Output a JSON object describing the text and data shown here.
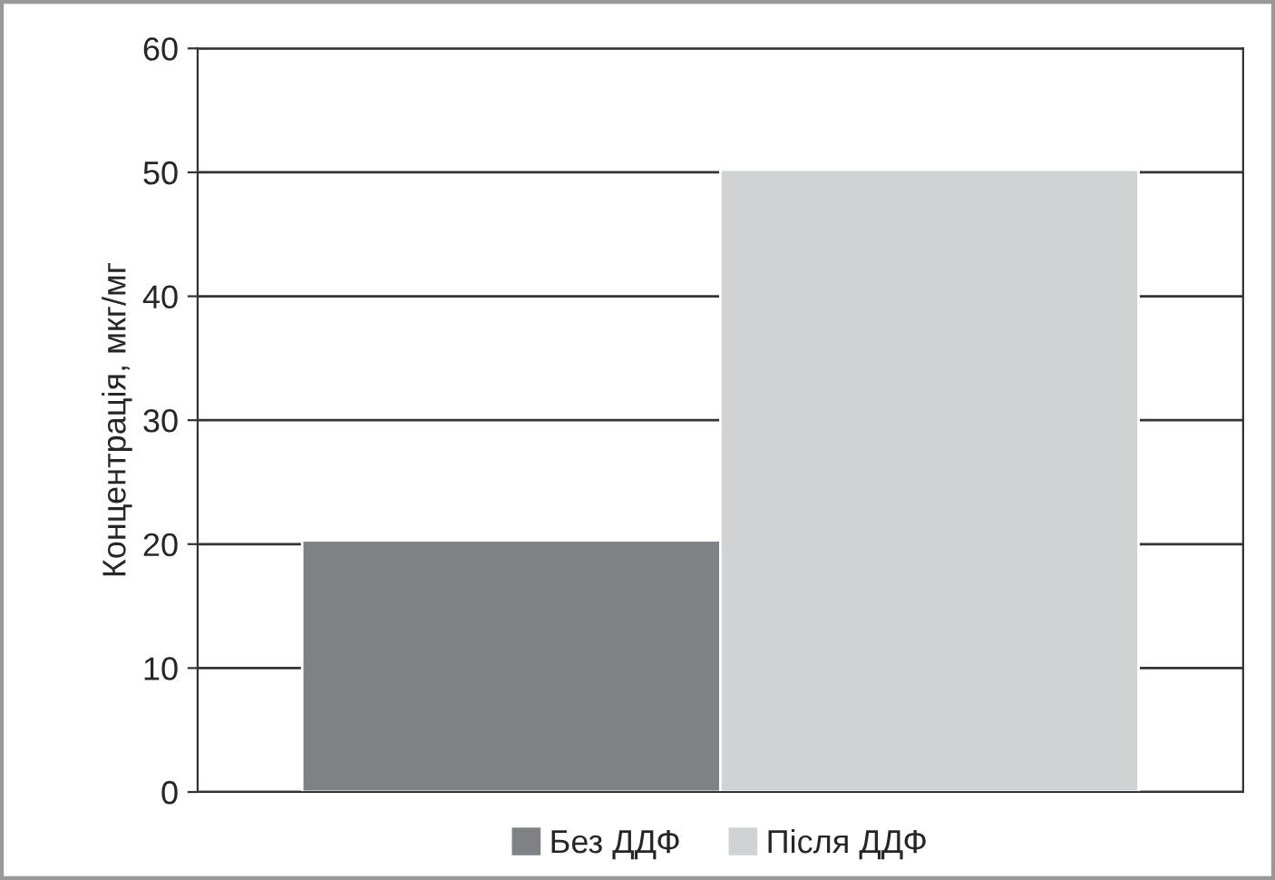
{
  "chart_data": {
    "type": "bar",
    "ylabel": "Концентрація, мкг/мг",
    "categories": [
      null
    ],
    "series": [
      {
        "name": "Без ДДФ",
        "color": "#808184",
        "values": [
          20.3
        ]
      },
      {
        "name": "Після ДДФ",
        "color": "#d1d2d4",
        "values": [
          50.2
        ]
      }
    ],
    "ylim": [
      0,
      60
    ],
    "yticks": [
      0,
      10,
      20,
      30,
      40,
      50,
      60
    ],
    "grid": "y",
    "legend": "bottom"
  }
}
